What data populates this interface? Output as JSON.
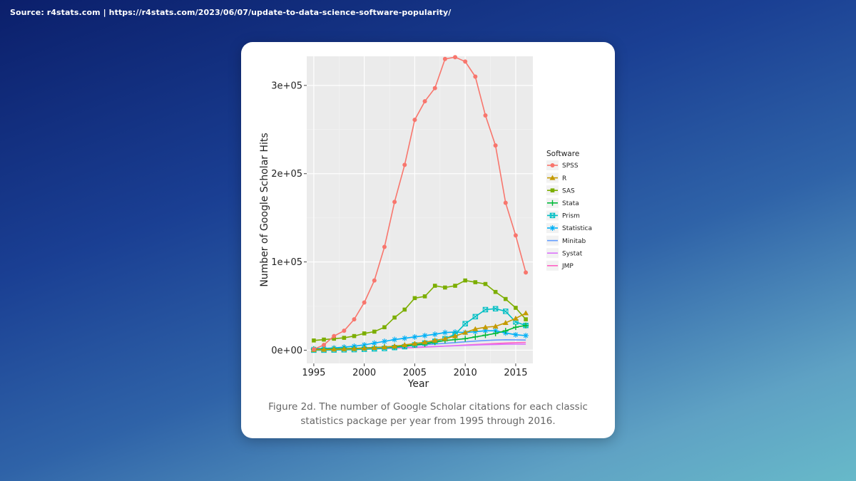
{
  "source": "Source: r4stats.com | https://r4stats.com/2023/06/07/update-to-data-science-software-popularity/",
  "caption": "Figure 2d. The number of Google Scholar citations for each classic statistics package per year from 1995 through 2016.",
  "chart_data": {
    "type": "line",
    "title": "",
    "xlabel": "Year",
    "ylabel": "Number of Google Scholar Hits",
    "xlim": [
      1994.3,
      2016.7
    ],
    "ylim": [
      -15000,
      333000
    ],
    "xticks": [
      1995,
      2000,
      2005,
      2010,
      2015
    ],
    "yticks": [
      0,
      100000,
      200000,
      300000
    ],
    "ytick_labels": [
      "0e+00",
      "1e+05",
      "2e+05",
      "3e+05"
    ],
    "legend_title": "Software",
    "x": [
      1995,
      1996,
      1997,
      1998,
      1999,
      2000,
      2001,
      2002,
      2003,
      2004,
      2005,
      2006,
      2007,
      2008,
      2009,
      2010,
      2011,
      2012,
      2013,
      2014,
      2015,
      2016
    ],
    "series": [
      {
        "name": "SPSS",
        "color": "#f8766d",
        "marker": "circle",
        "values": [
          1000,
          6000,
          16000,
          22000,
          35000,
          54000,
          79000,
          117000,
          168000,
          210000,
          261000,
          282000,
          297000,
          330000,
          332000,
          327000,
          310000,
          266000,
          232000,
          167000,
          130000,
          88000
        ]
      },
      {
        "name": "R",
        "color": "#c49a00",
        "marker": "triangle",
        "values": [
          500,
          700,
          1000,
          1300,
          1700,
          2200,
          2800,
          3500,
          4500,
          6000,
          7500,
          9000,
          11000,
          13000,
          16000,
          20000,
          24000,
          26000,
          27000,
          31000,
          36000,
          42000
        ]
      },
      {
        "name": "SAS",
        "color": "#7cae00",
        "marker": "square",
        "values": [
          11000,
          12000,
          13000,
          14000,
          16000,
          19000,
          21000,
          26000,
          37000,
          46000,
          59000,
          61000,
          73000,
          71000,
          73000,
          79000,
          77000,
          75000,
          66000,
          58000,
          48000,
          35000
        ]
      },
      {
        "name": "Stata",
        "color": "#00ba38",
        "marker": "plus",
        "values": [
          1000,
          1200,
          1500,
          1800,
          2000,
          2500,
          3000,
          3500,
          4000,
          5000,
          6000,
          7000,
          9000,
          11000,
          12000,
          13000,
          15000,
          17000,
          19000,
          22000,
          26000,
          28000
        ]
      },
      {
        "name": "Prism",
        "color": "#00bfc4",
        "marker": "boxx",
        "values": [
          0,
          0,
          200,
          400,
          600,
          1000,
          1500,
          2000,
          3000,
          4000,
          6000,
          8000,
          10000,
          13000,
          18000,
          30000,
          38000,
          46000,
          47000,
          44000,
          32000,
          28000
        ]
      },
      {
        "name": "Statistica",
        "color": "#00b0f6",
        "marker": "star",
        "values": [
          1500,
          2000,
          2500,
          3500,
          4500,
          6000,
          8000,
          10000,
          12000,
          13500,
          15000,
          16500,
          18000,
          20000,
          20500,
          20000,
          21000,
          22000,
          22000,
          19500,
          17500,
          16500
        ]
      },
      {
        "name": "Minitab",
        "color": "#619cff",
        "marker": "none",
        "values": [
          800,
          1000,
          1300,
          1600,
          2000,
          2500,
          3000,
          3600,
          4200,
          4800,
          5500,
          6200,
          7000,
          7800,
          8600,
          9500,
          10300,
          11000,
          11500,
          11800,
          11700,
          11500
        ]
      },
      {
        "name": "Systat",
        "color": "#db72fb",
        "marker": "none",
        "values": [
          700,
          800,
          1000,
          1200,
          1400,
          1700,
          2000,
          2300,
          2600,
          3000,
          3400,
          3800,
          4200,
          4600,
          5000,
          5400,
          5800,
          6200,
          6500,
          6700,
          6800,
          6900
        ]
      },
      {
        "name": "JMP",
        "color": "#ff61c3",
        "marker": "none",
        "values": [
          200,
          300,
          500,
          700,
          900,
          1200,
          1500,
          1800,
          2200,
          2600,
          3000,
          3500,
          4000,
          4600,
          5200,
          5800,
          6400,
          7000,
          7600,
          8100,
          8500,
          8800
        ]
      }
    ]
  }
}
